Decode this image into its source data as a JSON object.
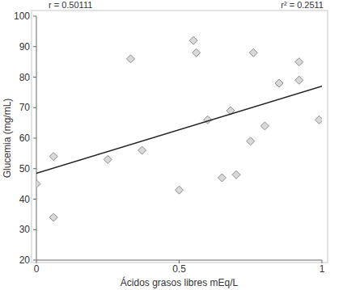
{
  "chart_data": {
    "type": "scatter",
    "annotations": [
      "r = 0.50111",
      "r² = 0.2511"
    ],
    "x_label": "Ácidos grasos libres mEq/L",
    "y_label": "Glucemia (mg/mL)",
    "x": [
      0.0,
      0.06,
      0.06,
      0.25,
      0.33,
      0.37,
      0.5,
      0.55,
      0.56,
      0.6,
      0.65,
      0.68,
      0.7,
      0.75,
      0.76,
      0.8,
      0.85,
      0.92,
      0.92,
      0.99
    ],
    "values": [
      45,
      54,
      34,
      53,
      86,
      56,
      43,
      92,
      88,
      66,
      47,
      69,
      48,
      59,
      88,
      64,
      78,
      79,
      85,
      66
    ],
    "trend_line": {
      "x": [
        0,
        1
      ],
      "values": [
        48.5,
        77
      ]
    },
    "color": "#d9d9d9",
    "marker": "diamond",
    "line_style": "solid",
    "xlim": [
      0,
      1
    ],
    "xticks": [
      0,
      0.5,
      1
    ],
    "ylim": [
      20,
      100
    ],
    "yticks": [
      20,
      30,
      40,
      50,
      60,
      70,
      80,
      90,
      100
    ],
    "grid": false
  }
}
